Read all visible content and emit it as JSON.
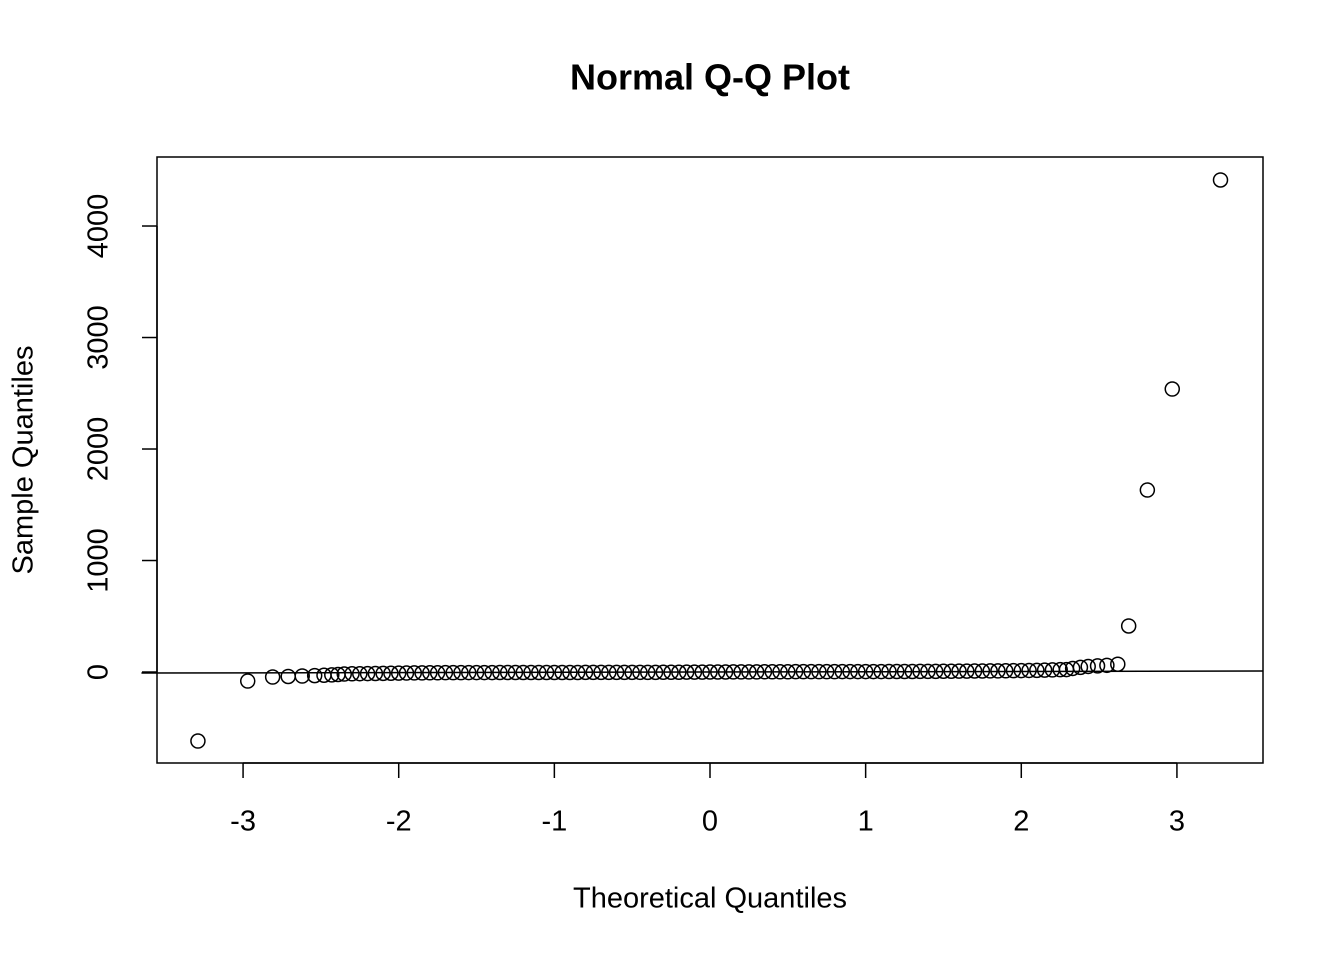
{
  "chart_data": {
    "type": "scatter",
    "title": "Normal Q-Q Plot",
    "x_label": "Theoretical Quantiles",
    "y_label": "Sample Quantiles",
    "x": [
      -3.29,
      -2.97,
      -2.81,
      -2.71,
      -2.62,
      -2.54,
      -2.48,
      -2.43,
      -2.39,
      -2.35,
      -2.3,
      -2.25,
      -2.2,
      -2.15,
      -2.1,
      -2.05,
      -2.0,
      -1.95,
      -1.9,
      -1.85,
      -1.8,
      -1.75,
      -1.7,
      -1.65,
      -1.6,
      -1.55,
      -1.5,
      -1.45,
      -1.4,
      -1.35,
      -1.3,
      -1.25,
      -1.2,
      -1.15,
      -1.1,
      -1.05,
      -1.0,
      -0.95,
      -0.9,
      -0.85,
      -0.8,
      -0.75,
      -0.7,
      -0.65,
      -0.6,
      -0.55,
      -0.5,
      -0.45,
      -0.4,
      -0.35,
      -0.3,
      -0.25,
      -0.2,
      -0.15,
      -0.1,
      -0.05,
      0,
      0.05,
      0.1,
      0.15,
      0.2,
      0.25,
      0.3,
      0.35,
      0.4,
      0.45,
      0.5,
      0.55,
      0.6,
      0.65,
      0.7,
      0.75,
      0.8,
      0.85,
      0.9,
      0.95,
      1.0,
      1.05,
      1.1,
      1.15,
      1.2,
      1.25,
      1.3,
      1.35,
      1.4,
      1.45,
      1.5,
      1.55,
      1.6,
      1.65,
      1.7,
      1.75,
      1.8,
      1.85,
      1.9,
      1.95,
      2.0,
      2.05,
      2.1,
      2.15,
      2.2,
      2.25,
      2.29,
      2.33,
      2.38,
      2.43,
      2.49,
      2.55,
      2.62,
      2.69,
      2.81,
      2.97,
      3.28
    ],
    "values": [
      -619,
      -81,
      -45,
      -40,
      -36,
      -32,
      -29,
      -26,
      -22,
      -18,
      -16,
      -15,
      -14,
      -13,
      -12,
      -11,
      -10,
      -9,
      -8,
      -8,
      -7,
      -7,
      -6,
      -6,
      -6,
      -5,
      -5,
      -5,
      -5,
      -4,
      -4,
      -4,
      -4,
      -4,
      -4,
      -4,
      -4,
      -4,
      -4,
      -4,
      -3,
      -3,
      -3,
      -3,
      -3,
      -3,
      -3,
      -3,
      -3,
      -3,
      -2,
      -2,
      -2,
      -1,
      -1,
      -1,
      0,
      0,
      0,
      1,
      1,
      1,
      1,
      2,
      2,
      2,
      2,
      3,
      3,
      3,
      3,
      3,
      3,
      4,
      4,
      4,
      4,
      4,
      4,
      5,
      5,
      5,
      5,
      6,
      6,
      6,
      7,
      7,
      8,
      8,
      9,
      9,
      10,
      10,
      11,
      12,
      13,
      14,
      15,
      17,
      19,
      21,
      22,
      32,
      42,
      50,
      55,
      60,
      70,
      413,
      1632,
      2538,
      4413
    ],
    "qqline": {
      "intercept": 0,
      "slope": 2.5
    },
    "xlim": [
      -3.553,
      3.553
    ],
    "ylim": [
      -816,
      4619
    ],
    "xticks": [
      -3,
      -2,
      -1,
      0,
      1,
      2,
      3
    ],
    "yticks": [
      0,
      1000,
      2000,
      3000,
      4000
    ],
    "color": "#000000"
  }
}
